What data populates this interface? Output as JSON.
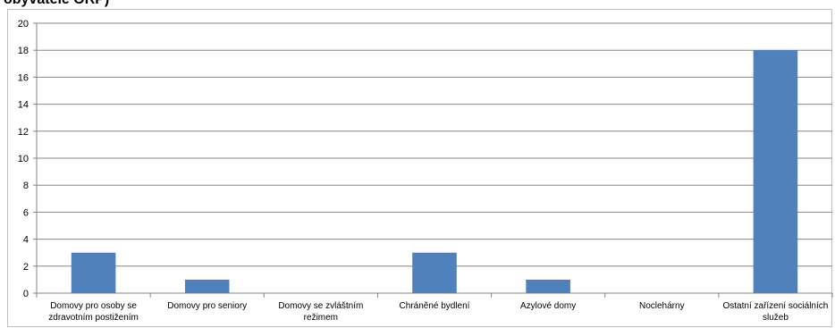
{
  "title": "obyvatele ORP)",
  "chart_data": {
    "type": "bar",
    "categories": [
      [
        "Domovy pro osoby se",
        "zdravotním postižením"
      ],
      [
        "Domovy pro seniory"
      ],
      [
        "Domovy se zvláštním",
        "režimem"
      ],
      [
        "Chráněné bydlení"
      ],
      [
        "Azylové domy"
      ],
      [
        "Noclehárny"
      ],
      [
        "Ostatní zařízení sociálních",
        "služeb"
      ]
    ],
    "values": [
      3,
      1,
      0,
      3,
      1,
      0,
      18
    ],
    "ylim": [
      0,
      20
    ],
    "yticks": [
      0,
      2,
      4,
      6,
      8,
      10,
      12,
      14,
      16,
      18,
      20
    ],
    "grid": true,
    "bar_color": "#4f81bd",
    "grid_color": "#868686",
    "axis_color": "#868686",
    "text_color": "#000000"
  }
}
